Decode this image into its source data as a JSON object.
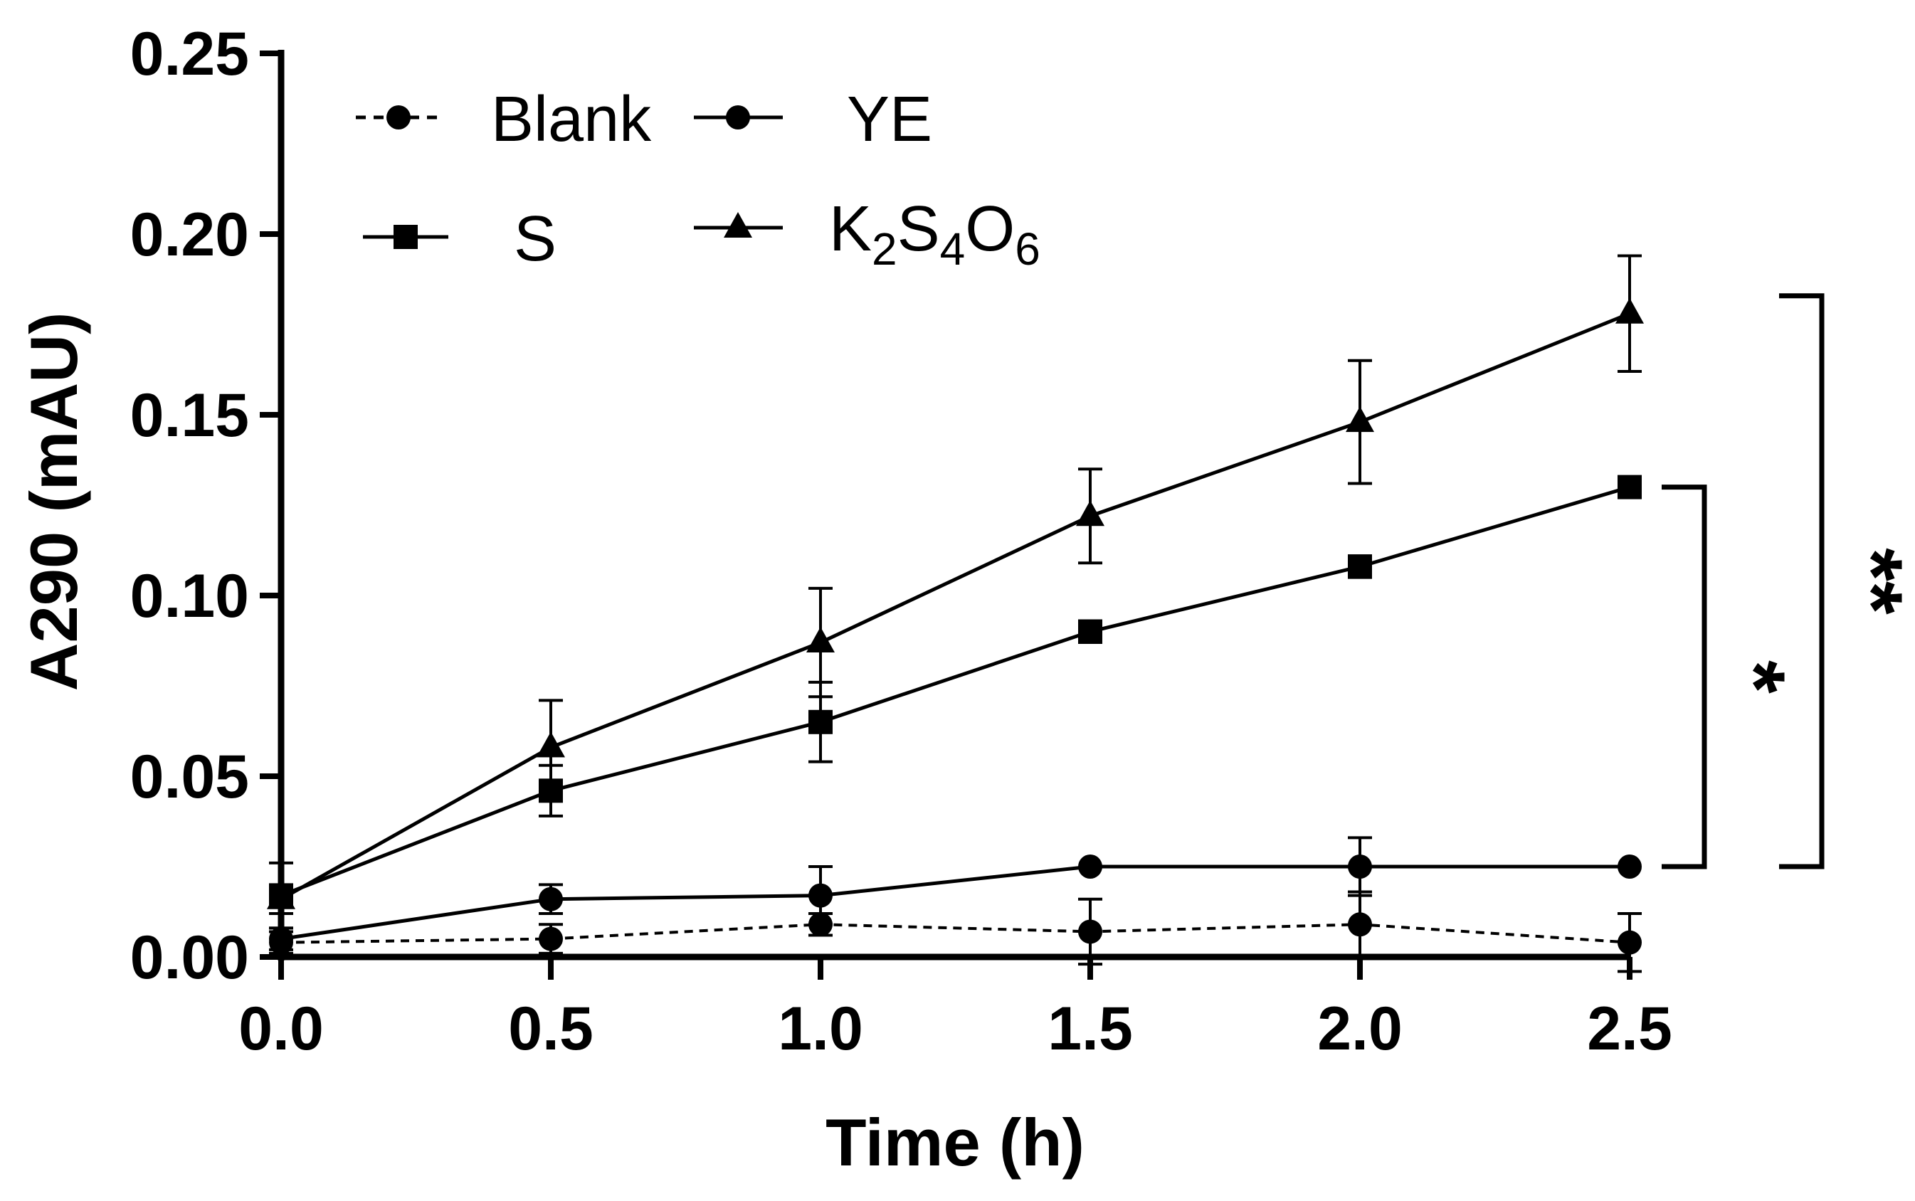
{
  "chart_data": {
    "type": "line",
    "xlabel": "Time (h)",
    "ylabel": "A290 (mAU)",
    "xlim": [
      0,
      2.5
    ],
    "ylim": [
      0,
      0.25
    ],
    "x_ticks": [
      "0.0",
      "0.5",
      "1.0",
      "1.5",
      "2.0",
      "2.5"
    ],
    "y_ticks": [
      "0.00",
      "0.05",
      "0.10",
      "0.15",
      "0.20",
      "0.25"
    ],
    "grid": false,
    "legend_position": "top-left",
    "x": [
      0,
      0.5,
      1.0,
      1.5,
      2.0,
      2.5
    ],
    "series": [
      {
        "name": "Blank",
        "marker": "circle",
        "line_style": "dashed",
        "values": [
          0.004,
          0.005,
          0.009,
          0.007,
          0.009,
          0.004
        ],
        "errors": [
          0.003,
          0.004,
          0.003,
          0.009,
          0.009,
          0.008
        ]
      },
      {
        "name": "YE",
        "marker": "circle",
        "line_style": "solid",
        "values": [
          0.005,
          0.016,
          0.017,
          0.025,
          0.025,
          0.025
        ],
        "errors": [
          0.003,
          0.004,
          0.008,
          0.0,
          0.008,
          0.0
        ]
      },
      {
        "name": "S",
        "marker": "square",
        "line_style": "solid",
        "values": [
          0.017,
          0.046,
          0.065,
          0.09,
          0.108,
          0.13
        ],
        "errors": [
          0.009,
          0.007,
          0.011,
          0.003,
          0.003,
          0.0
        ]
      },
      {
        "name": "K2S4O6",
        "label_main": "K",
        "label_sub1": "2",
        "label_mid": "S",
        "label_sub2": "4",
        "label_mid2": "O",
        "label_sub3": "6",
        "marker": "triangle",
        "line_style": "solid",
        "values": [
          0.016,
          0.058,
          0.087,
          0.122,
          0.148,
          0.178
        ],
        "errors": [
          0.004,
          0.013,
          0.015,
          0.013,
          0.017,
          0.016
        ]
      }
    ],
    "annotations": [
      {
        "text": "*",
        "from_series": "YE",
        "to_series": "S"
      },
      {
        "text": "**",
        "from_series": "YE",
        "to_series": "K2S4O6"
      }
    ]
  }
}
